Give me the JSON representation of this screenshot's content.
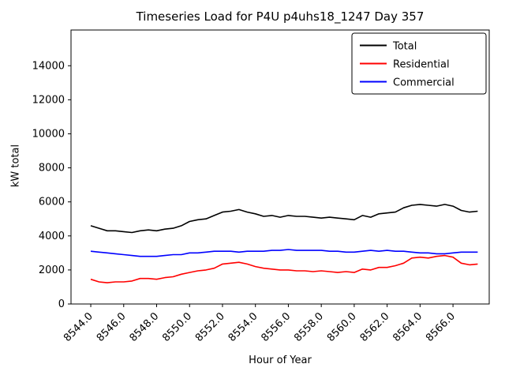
{
  "chart_data": {
    "type": "line",
    "title": "Timeseries Load for P4U p4uhs18_1247  Day 357",
    "xlabel": "Hour of Year",
    "ylabel": "kW total",
    "xlim": [
      8542.8,
      8568.2
    ],
    "ylim": [
      0,
      16100
    ],
    "xtick_labels": [
      "8544.0",
      "8546.0",
      "8548.0",
      "8550.0",
      "8552.0",
      "8554.0",
      "8556.0",
      "8558.0",
      "8560.0",
      "8562.0",
      "8564.0",
      "8566.0"
    ],
    "ytick_values": [
      0,
      2000,
      4000,
      6000,
      8000,
      10000,
      12000,
      14000
    ],
    "legend_position": "upper right",
    "grid": false,
    "x": [
      8544.0,
      8544.5,
      8545.0,
      8545.5,
      8546.0,
      8546.5,
      8547.0,
      8547.5,
      8548.0,
      8548.5,
      8549.0,
      8549.5,
      8550.0,
      8550.5,
      8551.0,
      8551.5,
      8552.0,
      8552.5,
      8553.0,
      8553.5,
      8554.0,
      8554.5,
      8555.0,
      8555.5,
      8556.0,
      8556.5,
      8557.0,
      8557.5,
      8558.0,
      8558.5,
      8559.0,
      8559.5,
      8560.0,
      8560.5,
      8561.0,
      8561.5,
      8562.0,
      8562.5,
      8563.0,
      8563.5,
      8564.0,
      8564.5,
      8565.0,
      8565.5,
      8566.0,
      8566.5,
      8567.0,
      8567.5
    ],
    "series": [
      {
        "name": "Total",
        "color": "#000000",
        "values": [
          4600,
          4450,
          4300,
          4300,
          4250,
          4200,
          4300,
          4350,
          4300,
          4400,
          4450,
          4600,
          4850,
          4950,
          5000,
          5200,
          5400,
          5450,
          5550,
          5400,
          5300,
          5150,
          5200,
          5100,
          5200,
          5150,
          5150,
          5100,
          5050,
          5100,
          5050,
          5000,
          4950,
          5200,
          5100,
          5300,
          5350,
          5400,
          5650,
          5800,
          5850,
          5800,
          5750,
          5850,
          5750,
          5500,
          5400,
          5450
        ]
      },
      {
        "name": "Residential",
        "color": "#ff0000",
        "values": [
          1450,
          1300,
          1250,
          1300,
          1300,
          1350,
          1500,
          1500,
          1450,
          1550,
          1600,
          1750,
          1850,
          1950,
          2000,
          2100,
          2350,
          2400,
          2450,
          2350,
          2200,
          2100,
          2050,
          2000,
          2000,
          1950,
          1950,
          1900,
          1950,
          1900,
          1850,
          1900,
          1850,
          2050,
          2000,
          2150,
          2150,
          2250,
          2400,
          2700,
          2750,
          2700,
          2800,
          2850,
          2750,
          2400,
          2300,
          2350
        ]
      },
      {
        "name": "Commercial",
        "color": "#0000ff",
        "values": [
          3100,
          3050,
          3000,
          2950,
          2900,
          2850,
          2800,
          2800,
          2800,
          2850,
          2900,
          2900,
          3000,
          3000,
          3050,
          3100,
          3100,
          3100,
          3050,
          3100,
          3100,
          3100,
          3150,
          3150,
          3200,
          3150,
          3150,
          3150,
          3150,
          3100,
          3100,
          3050,
          3050,
          3100,
          3150,
          3100,
          3150,
          3100,
          3100,
          3050,
          3000,
          3000,
          2950,
          2950,
          3000,
          3050,
          3050,
          3050
        ]
      }
    ]
  }
}
